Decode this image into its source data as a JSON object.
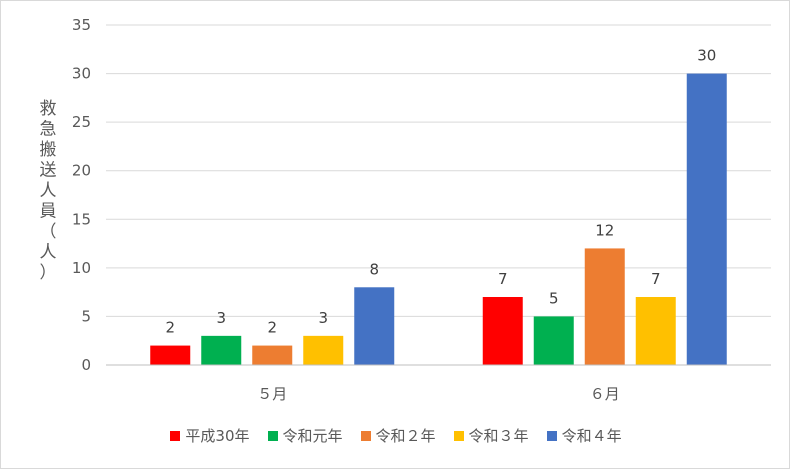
{
  "chart_data": {
    "type": "bar",
    "categories": [
      "５月",
      "６月"
    ],
    "series": [
      {
        "name": "平成30年",
        "color": "#ff0000",
        "values": [
          2,
          7
        ]
      },
      {
        "name": "令和元年",
        "color": "#00b050",
        "values": [
          3,
          5
        ]
      },
      {
        "name": "令和２年",
        "color": "#ed7d31",
        "values": [
          2,
          12
        ]
      },
      {
        "name": "令和３年",
        "color": "#ffc000",
        "values": [
          3,
          7
        ]
      },
      {
        "name": "令和４年",
        "color": "#4472c4",
        "values": [
          8,
          30
        ]
      }
    ],
    "ylabel": "救急搬送人員（人）",
    "ylim": [
      0,
      35
    ],
    "yticks": [
      0,
      5,
      10,
      15,
      20,
      25,
      30,
      35
    ],
    "grid": true,
    "legend_position": "bottom",
    "data_labels": true
  }
}
